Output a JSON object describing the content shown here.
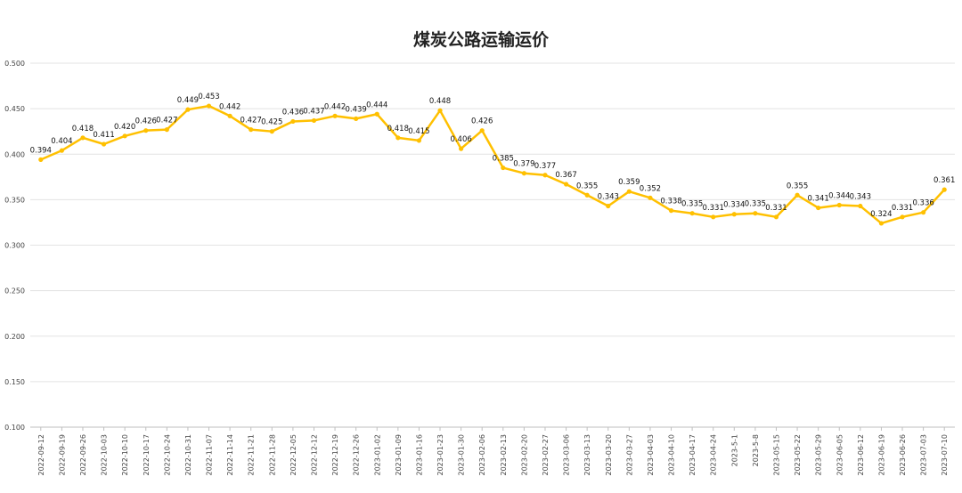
{
  "chart_data": {
    "type": "line",
    "title": "煤炭公路运输运价",
    "xlabel": "",
    "ylabel": "",
    "ylim": [
      0.1,
      0.5
    ],
    "yticks": [
      "0.100",
      "0.150",
      "0.200",
      "0.250",
      "0.300",
      "0.350",
      "0.400",
      "0.450",
      "0.500"
    ],
    "grid": true,
    "legend": "none",
    "line_color": "#FFC000",
    "categories": [
      "2022-09-12",
      "2022-09-19",
      "2022-09-26",
      "2022-10-03",
      "2022-10-10",
      "2022-10-17",
      "2022-10-24",
      "2022-10-31",
      "2022-11-07",
      "2022-11-14",
      "2022-11-21",
      "2022-11-28",
      "2022-12-05",
      "2022-12-12",
      "2022-12-19",
      "2022-12-26",
      "2023-01-02",
      "2023-01-09",
      "2023-01-16",
      "2023-01-23",
      "2023-01-30",
      "2023-02-06",
      "2023-02-13",
      "2023-02-20",
      "2023-02-27",
      "2023-03-06",
      "2023-03-13",
      "2023-03-20",
      "2023-03-27",
      "2023-04-03",
      "2023-04-10",
      "2023-04-17",
      "2023-04-24",
      "2023-5-1",
      "2023-5-8",
      "2023-05-15",
      "2023-05-22",
      "2023-05-29",
      "2023-06-05",
      "2023-06-12",
      "2023-06-19",
      "2023-06-26",
      "2023-07-03",
      "2023-07-10"
    ],
    "values": [
      0.394,
      0.404,
      0.418,
      0.411,
      0.42,
      0.426,
      0.427,
      0.449,
      0.453,
      0.442,
      0.427,
      0.425,
      0.436,
      0.437,
      0.442,
      0.439,
      0.444,
      0.418,
      0.415,
      0.448,
      0.406,
      0.426,
      0.385,
      0.379,
      0.377,
      0.367,
      0.355,
      0.343,
      0.359,
      0.352,
      0.338,
      0.335,
      0.331,
      0.334,
      0.335,
      0.331,
      0.355,
      0.341,
      0.344,
      0.343,
      0.324,
      0.331,
      0.336,
      0.361
    ],
    "labels": [
      "0.394",
      "0.404",
      "0.418",
      "0.411",
      "0.420",
      "0.426",
      "0.427",
      "0.449",
      "0.453",
      "0.442",
      "0.427",
      "0.425",
      "0.436",
      "0.437",
      "0.442",
      "0.439",
      "0.444",
      "0.418",
      "0.415",
      "0.448",
      "0.406",
      "0.426",
      "0.385",
      "0.379",
      "0.377",
      "0.367",
      "0.355",
      "0.343",
      "0.359",
      "0.352",
      "0.338",
      "0.335",
      "0.331",
      "0.334",
      "0.335",
      "0.331",
      "0.355",
      "0.341",
      "0.344",
      "0.343",
      "0.324",
      "0.331",
      "0.336",
      "0.361"
    ]
  }
}
